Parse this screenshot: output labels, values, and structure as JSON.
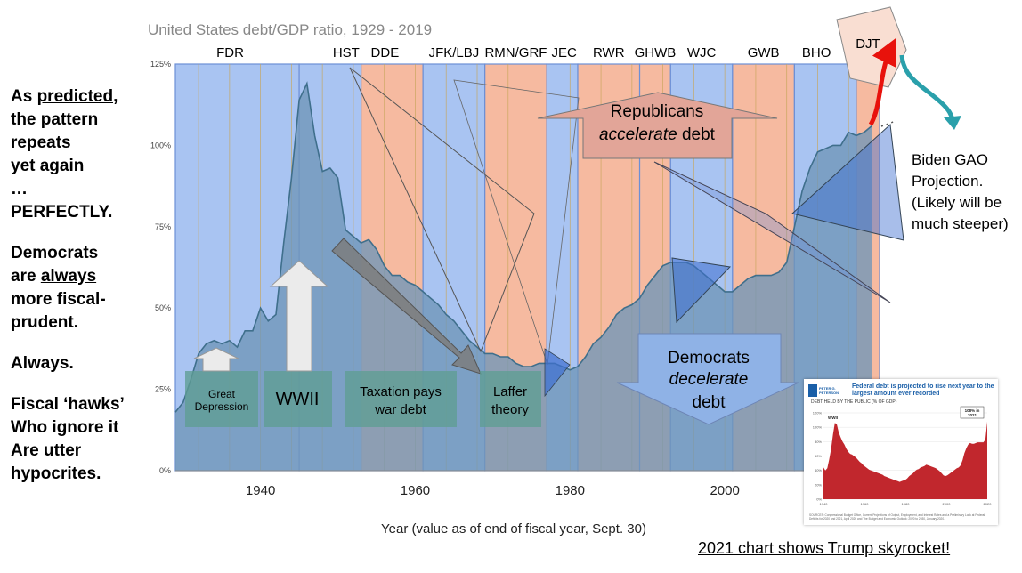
{
  "chart_data": {
    "type": "area",
    "title": "United States debt/GDP ratio, 1929 - 2019",
    "xlabel": "Year (value as of end of fiscal year, Sept. 30)",
    "ylabel": "",
    "xlim": [
      1929,
      2020
    ],
    "ylim": [
      0,
      125
    ],
    "x_ticks": [
      1940,
      1960,
      1980,
      2000
    ],
    "y_ticks": [
      "0%",
      "25%",
      "50%",
      "75%",
      "100%",
      "125%"
    ],
    "y_tick_values": [
      0,
      25,
      50,
      75,
      100,
      125
    ],
    "grid": "vertical",
    "series": [
      {
        "x": [
          1929,
          1930,
          1931,
          1932,
          1933,
          1934,
          1935,
          1936,
          1937,
          1938,
          1939,
          1940,
          1941,
          1942,
          1943,
          1944,
          1945,
          1946,
          1947,
          1948,
          1949,
          1950,
          1951,
          1952,
          1953,
          1954,
          1955,
          1956,
          1957,
          1958,
          1959,
          1960,
          1961,
          1962,
          1963,
          1964,
          1965,
          1966,
          1967,
          1968,
          1969,
          1970,
          1971,
          1972,
          1973,
          1974,
          1975,
          1976,
          1977,
          1978,
          1979,
          1980,
          1981,
          1982,
          1983,
          1984,
          1985,
          1986,
          1987,
          1988,
          1989,
          1990,
          1991,
          1992,
          1993,
          1994,
          1995,
          1996,
          1997,
          1998,
          1999,
          2000,
          2001,
          2002,
          2003,
          2004,
          2005,
          2006,
          2007,
          2008,
          2009,
          2010,
          2011,
          2012,
          2013,
          2014,
          2015,
          2016,
          2017,
          2018,
          2019
        ],
        "values": [
          18,
          21,
          28,
          36,
          39,
          40,
          39,
          40,
          38,
          43,
          43,
          50,
          46,
          48,
          70,
          90,
          114,
          119,
          103,
          92,
          93,
          90,
          74,
          72,
          70,
          71,
          68,
          63,
          60,
          60,
          58,
          57,
          55,
          53,
          51,
          48,
          46,
          43,
          40,
          38,
          36,
          36,
          35,
          35,
          33,
          32,
          32,
          33,
          33,
          33,
          32,
          31,
          32,
          35,
          39,
          41,
          44,
          48,
          50,
          51,
          53,
          57,
          60,
          63,
          64,
          64,
          64,
          63,
          61,
          59,
          57,
          55,
          55,
          57,
          59,
          60,
          60,
          60,
          61,
          64,
          75,
          86,
          93,
          98,
          99,
          100,
          100,
          104,
          103,
          104,
          106
        ]
      }
    ],
    "presidents": [
      {
        "label": "FDR",
        "start": 1929,
        "end": 1945,
        "party": "D"
      },
      {
        "label": "HST",
        "start": 1945,
        "end": 1953,
        "party": "D"
      },
      {
        "label": "DDE",
        "start": 1953,
        "end": 1961,
        "party": "R"
      },
      {
        "label": "JFK/LBJ",
        "start": 1961,
        "end": 1969,
        "party": "D"
      },
      {
        "label": "RMN/GRF",
        "start": 1969,
        "end": 1977,
        "party": "R"
      },
      {
        "label": "JEC",
        "start": 1977,
        "end": 1981,
        "party": "D"
      },
      {
        "label": "RWR",
        "start": 1981,
        "end": 1989,
        "party": "R"
      },
      {
        "label": "GHWB",
        "start": 1989,
        "end": 1993,
        "party": "R"
      },
      {
        "label": "WJC",
        "start": 1993,
        "end": 2001,
        "party": "D"
      },
      {
        "label": "GWB",
        "start": 2001,
        "end": 2009,
        "party": "R"
      },
      {
        "label": "BHO",
        "start": 2009,
        "end": 2017,
        "party": "D"
      },
      {
        "label": "DJT",
        "start": 2017,
        "end": 2020,
        "party": "R"
      }
    ],
    "annotations": {
      "great_depression": "Great Depression",
      "wwii": "WWII",
      "taxation": [
        "Taxation pays",
        "war debt"
      ],
      "laffer": [
        "Laffer",
        "theory"
      ],
      "republicans": [
        "Republicans",
        "accelerate",
        "debt"
      ],
      "democrats": [
        "Democrats",
        "decelerate",
        "debt"
      ]
    },
    "colors": {
      "democrat": "#a9c4f2",
      "republican": "#f6baa0",
      "area_fill": "#6f96b8",
      "area_line": "#3f6f8c",
      "grid_line": "#c7a65a",
      "arrow_red": "#e8120c",
      "arrow_teal": "#2aa0ab"
    }
  },
  "left_text": [
    [
      "As predicted,",
      "the pattern",
      "repeats",
      "yet again",
      "…",
      "PERFECTLY."
    ],
    [
      "Democrats",
      "are always",
      "more fiscal-",
      "prudent."
    ],
    [
      "Always."
    ],
    [
      "Fiscal ‘hawks’",
      "Who ignore it",
      "Are utter",
      "hypocrites."
    ]
  ],
  "biden_note": [
    "Biden GAO",
    "Projection.",
    "(Likely will be",
    "much steeper)"
  ],
  "footer_caption": "2021 chart shows Trump skyrocket!",
  "inset": {
    "logo": "PETER G. PETERSON FOUNDATION",
    "title": "Federal debt is projected to rise next year to the largest amount ever recorded",
    "subtitle": "DEBT HELD BY THE PUBLIC (% OF GDP)",
    "callout_left": "WWII",
    "callout_right": [
      "108% in",
      "2021"
    ],
    "y_ticks": [
      "120%",
      "100%",
      "80%",
      "60%",
      "40%",
      "20%",
      "0%"
    ],
    "x_ticks": [
      "1940",
      "1960",
      "1980",
      "2000",
      "2020"
    ],
    "source": "SOURCES: Congressional Budget Office, Current Projections of Output, Employment, and Interest Rates and a Preliminary Look at Federal Deficits for 2020 and 2021, April 2020 and The Budget and Economic Outlook: 2020 to 2030, January 2020.",
    "values": [
      44,
      40,
      43,
      55,
      70,
      90,
      106,
      104,
      93,
      86,
      80,
      76,
      70,
      66,
      63,
      62,
      60,
      58,
      55,
      52,
      50,
      47,
      45,
      43,
      41,
      40,
      39,
      38,
      37,
      36,
      35,
      34,
      32,
      31,
      30,
      29,
      28,
      27,
      26,
      25,
      24,
      25,
      26,
      27,
      29,
      32,
      34,
      36,
      39,
      41,
      42,
      44,
      45,
      46,
      48,
      47,
      46,
      45,
      44,
      43,
      41,
      39,
      36,
      33,
      32,
      33,
      35,
      37,
      39,
      41,
      43,
      44,
      47,
      54,
      64,
      71,
      76,
      78,
      77,
      77,
      78,
      79,
      79,
      79,
      79,
      83,
      108
    ]
  }
}
